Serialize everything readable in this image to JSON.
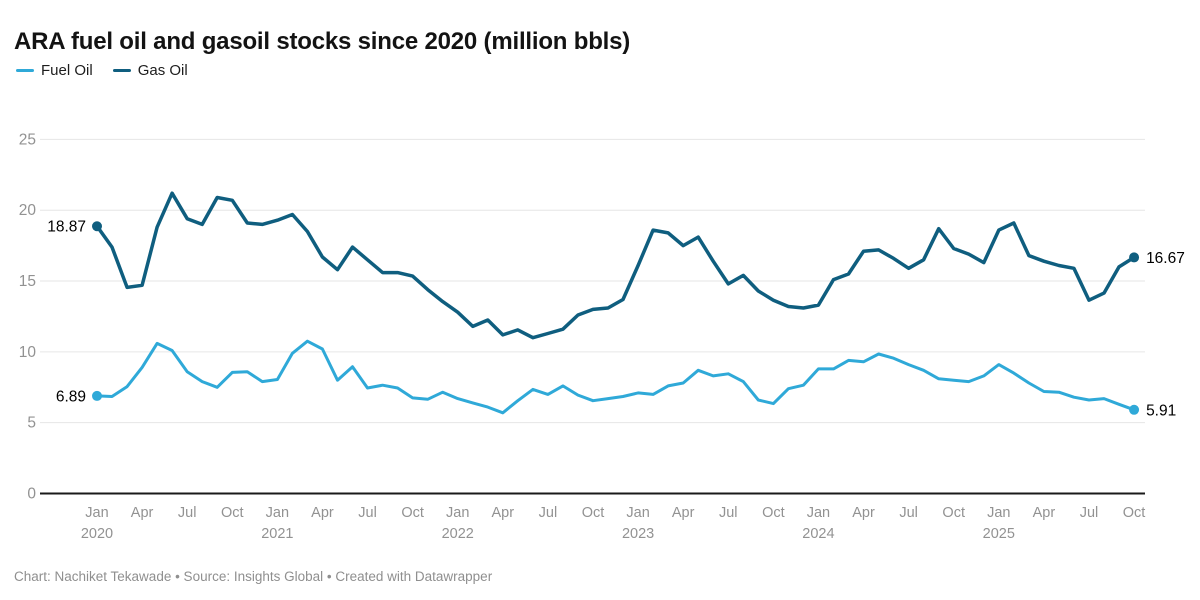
{
  "title": "ARA fuel oil and gasoil stocks since 2020 (million bbls)",
  "legend": {
    "items": [
      {
        "label": "Fuel Oil",
        "color": "#2fa9d8"
      },
      {
        "label": "Gas Oil",
        "color": "#0f5e7f"
      }
    ]
  },
  "footer": {
    "text": "Chart: Nachiket Tekawade • Source: Insights Global • Created with Datawrapper"
  },
  "chart_data": {
    "type": "line",
    "title": "ARA fuel oil and gasoil stocks since 2020 (million bbls)",
    "x_frequency": "monthly",
    "x_start": "2020-01",
    "x_end": "2025-10",
    "x_tick_month_names": {
      "0": "Jan",
      "3": "Apr",
      "6": "Jul",
      "9": "Oct"
    },
    "first_year": 2020,
    "ylim": [
      0,
      25
    ],
    "yticks": [
      0,
      5,
      10,
      15,
      20,
      25
    ],
    "grid": "horizontal",
    "legend_position": "top-left",
    "axis_text_color": "#929292",
    "grid_color": "#e6e6e6",
    "baseline_color": "#1a1a1a",
    "point_label_color": "#000000",
    "series": [
      {
        "name": "Fuel Oil",
        "color": "#2fa9d8",
        "first_label": "6.89",
        "last_label": "5.91",
        "values": [
          6.89,
          6.85,
          7.55,
          8.9,
          10.6,
          10.1,
          8.6,
          7.9,
          7.5,
          8.55,
          8.6,
          7.9,
          8.05,
          9.9,
          10.75,
          10.2,
          8.0,
          8.95,
          7.45,
          7.65,
          7.45,
          6.75,
          6.65,
          7.15,
          6.7,
          6.4,
          6.1,
          5.7,
          6.55,
          7.35,
          7.0,
          7.6,
          6.95,
          6.55,
          6.7,
          6.85,
          7.1,
          7.0,
          7.6,
          7.8,
          8.7,
          8.3,
          8.45,
          7.9,
          6.6,
          6.35,
          7.4,
          7.65,
          8.8,
          8.8,
          9.4,
          9.3,
          9.85,
          9.55,
          9.1,
          8.7,
          8.1,
          8.0,
          7.9,
          8.3,
          9.1,
          8.5,
          7.8,
          7.2,
          7.15,
          6.8,
          6.6,
          6.7,
          6.3,
          5.91
        ]
      },
      {
        "name": "Gas Oil",
        "color": "#0f5e7f",
        "first_label": "18.87",
        "last_label": "16.67",
        "values": [
          18.87,
          17.4,
          14.55,
          14.7,
          18.8,
          21.2,
          19.4,
          19.0,
          20.9,
          20.7,
          19.1,
          19.0,
          19.3,
          19.7,
          18.5,
          16.7,
          15.8,
          17.4,
          16.5,
          15.6,
          15.6,
          15.35,
          14.4,
          13.55,
          12.8,
          11.8,
          12.25,
          11.2,
          11.55,
          11.0,
          11.3,
          11.6,
          12.6,
          13.0,
          13.1,
          13.7,
          16.1,
          18.6,
          18.4,
          17.5,
          18.1,
          16.4,
          14.8,
          15.4,
          14.3,
          13.65,
          13.2,
          13.1,
          13.3,
          15.1,
          15.5,
          17.1,
          17.2,
          16.6,
          15.9,
          16.5,
          18.7,
          17.3,
          16.9,
          16.3,
          18.6,
          19.1,
          16.8,
          16.4,
          16.1,
          15.9,
          13.65,
          14.15,
          16.0,
          16.67
        ]
      }
    ]
  }
}
